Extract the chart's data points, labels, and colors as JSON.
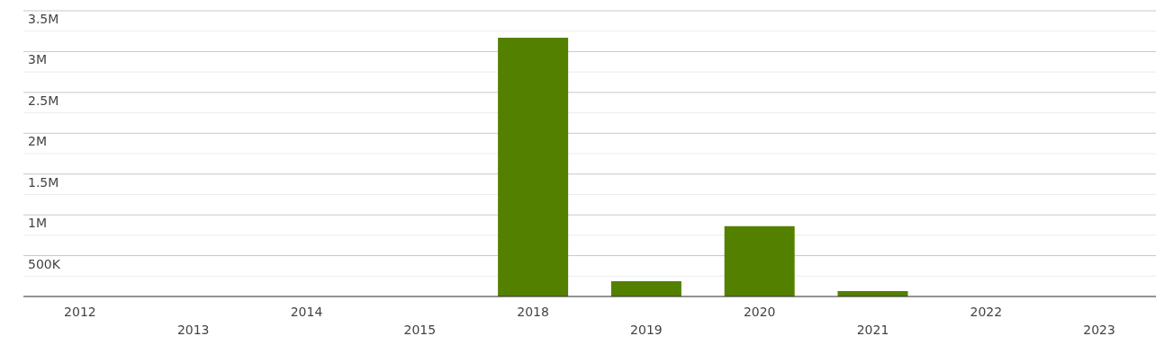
{
  "chart_data": {
    "type": "bar",
    "categories": [
      "2012",
      "2013",
      "2014",
      "2015",
      "2018",
      "2019",
      "2020",
      "2021",
      "2022",
      "2023"
    ],
    "values": [
      0,
      0,
      0,
      0,
      3170000,
      187000,
      860000,
      66000,
      0,
      0
    ],
    "color": "#548000",
    "ylim": [
      0,
      3500000
    ],
    "yticks": [
      {
        "value": 0,
        "label": null
      },
      {
        "value": 250000,
        "label": null
      },
      {
        "value": 500000,
        "label": "500K"
      },
      {
        "value": 750000,
        "label": null
      },
      {
        "value": 1000000,
        "label": "1M"
      },
      {
        "value": 1250000,
        "label": null
      },
      {
        "value": 1500000,
        "label": "1.5M"
      },
      {
        "value": 1750000,
        "label": null
      },
      {
        "value": 2000000,
        "label": "2M"
      },
      {
        "value": 2250000,
        "label": null
      },
      {
        "value": 2500000,
        "label": "2.5M"
      },
      {
        "value": 2750000,
        "label": null
      },
      {
        "value": 3000000,
        "label": "3M"
      },
      {
        "value": 3250000,
        "label": null
      },
      {
        "value": 3500000,
        "label": "3.5M"
      }
    ],
    "grid": "y"
  }
}
